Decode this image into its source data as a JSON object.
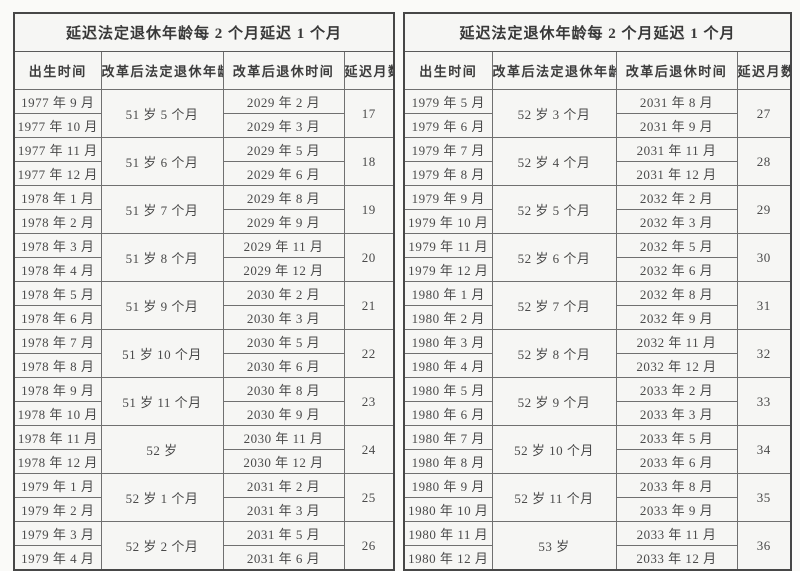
{
  "page": {
    "background": "#fafaf8",
    "table_background": "#f6f6f4",
    "border_color": "#474747",
    "text_color": "#3f3f3f"
  },
  "tables": [
    {
      "title": "延迟法定退休年龄每 2 个月延迟 1 个月",
      "headers": [
        "出生时间",
        "改革后法定退休年龄",
        "改革后退休时间",
        "延迟月数"
      ],
      "groups": [
        {
          "births": [
            "1977 年 9 月",
            "1977 年 10 月"
          ],
          "age": "51 岁 5 个月",
          "retire": [
            "2029 年 2 月",
            "2029 年 3 月"
          ],
          "delay": "17"
        },
        {
          "births": [
            "1977 年 11 月",
            "1977 年 12 月"
          ],
          "age": "51 岁 6 个月",
          "retire": [
            "2029 年 5 月",
            "2029 年 6 月"
          ],
          "delay": "18"
        },
        {
          "births": [
            "1978 年 1 月",
            "1978 年 2 月"
          ],
          "age": "51 岁 7 个月",
          "retire": [
            "2029 年 8 月",
            "2029 年 9 月"
          ],
          "delay": "19"
        },
        {
          "births": [
            "1978 年 3 月",
            "1978 年 4 月"
          ],
          "age": "51 岁 8 个月",
          "retire": [
            "2029 年 11 月",
            "2029 年 12 月"
          ],
          "delay": "20"
        },
        {
          "births": [
            "1978 年 5 月",
            "1978 年 6 月"
          ],
          "age": "51 岁 9 个月",
          "retire": [
            "2030 年 2 月",
            "2030 年 3 月"
          ],
          "delay": "21"
        },
        {
          "births": [
            "1978 年 7 月",
            "1978 年 8 月"
          ],
          "age": "51 岁 10 个月",
          "retire": [
            "2030 年 5 月",
            "2030 年 6 月"
          ],
          "delay": "22"
        },
        {
          "births": [
            "1978 年 9 月",
            "1978 年 10 月"
          ],
          "age": "51 岁 11 个月",
          "retire": [
            "2030 年 8 月",
            "2030 年 9 月"
          ],
          "delay": "23"
        },
        {
          "births": [
            "1978 年 11 月",
            "1978 年 12 月"
          ],
          "age": "52 岁",
          "retire": [
            "2030 年 11 月",
            "2030 年 12 月"
          ],
          "delay": "24"
        },
        {
          "births": [
            "1979 年 1 月",
            "1979 年 2 月"
          ],
          "age": "52 岁 1 个月",
          "retire": [
            "2031 年 2 月",
            "2031 年 3 月"
          ],
          "delay": "25"
        },
        {
          "births": [
            "1979 年 3 月",
            "1979 年 4 月"
          ],
          "age": "52 岁 2 个月",
          "retire": [
            "2031 年 5 月",
            "2031 年 6 月"
          ],
          "delay": "26"
        }
      ]
    },
    {
      "title": "延迟法定退休年龄每 2 个月延迟 1 个月",
      "headers": [
        "出生时间",
        "改革后法定退休年龄",
        "改革后退休时间",
        "延迟月数"
      ],
      "groups": [
        {
          "births": [
            "1979 年 5 月",
            "1979 年 6 月"
          ],
          "age": "52 岁 3 个月",
          "retire": [
            "2031 年 8 月",
            "2031 年 9 月"
          ],
          "delay": "27"
        },
        {
          "births": [
            "1979 年 7 月",
            "1979 年 8 月"
          ],
          "age": "52 岁 4 个月",
          "retire": [
            "2031 年 11 月",
            "2031 年 12 月"
          ],
          "delay": "28"
        },
        {
          "births": [
            "1979 年 9 月",
            "1979 年 10 月"
          ],
          "age": "52 岁 5 个月",
          "retire": [
            "2032 年 2 月",
            "2032 年 3 月"
          ],
          "delay": "29"
        },
        {
          "births": [
            "1979 年 11 月",
            "1979 年 12 月"
          ],
          "age": "52 岁 6 个月",
          "retire": [
            "2032 年 5 月",
            "2032 年 6 月"
          ],
          "delay": "30"
        },
        {
          "births": [
            "1980 年 1 月",
            "1980 年 2 月"
          ],
          "age": "52 岁 7 个月",
          "retire": [
            "2032 年 8 月",
            "2032 年 9 月"
          ],
          "delay": "31"
        },
        {
          "births": [
            "1980 年 3 月",
            "1980 年 4 月"
          ],
          "age": "52 岁 8 个月",
          "retire": [
            "2032 年 11 月",
            "2032 年 12 月"
          ],
          "delay": "32"
        },
        {
          "births": [
            "1980 年 5 月",
            "1980 年 6 月"
          ],
          "age": "52 岁 9 个月",
          "retire": [
            "2033 年 2 月",
            "2033 年 3 月"
          ],
          "delay": "33"
        },
        {
          "births": [
            "1980 年 7 月",
            "1980 年 8 月"
          ],
          "age": "52 岁 10 个月",
          "retire": [
            "2033 年 5 月",
            "2033 年 6 月"
          ],
          "delay": "34"
        },
        {
          "births": [
            "1980 年 9 月",
            "1980 年 10 月"
          ],
          "age": "52 岁 11 个月",
          "retire": [
            "2033 年 8 月",
            "2033 年 9 月"
          ],
          "delay": "35"
        },
        {
          "births": [
            "1980 年 11 月",
            "1980 年 12 月"
          ],
          "age": "53 岁",
          "retire": [
            "2033 年 11 月",
            "2033 年 12 月"
          ],
          "delay": "36"
        }
      ]
    }
  ]
}
